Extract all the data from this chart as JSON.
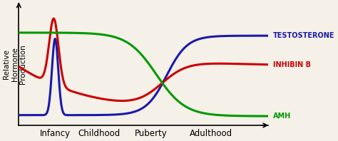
{
  "background_color": "#f5f0e8",
  "title": "",
  "ylabel": "Relative\nHormone\nProduction",
  "ylabel_fontsize": 7.5,
  "x_ticks": [
    0.18,
    0.35,
    0.55,
    0.78
  ],
  "x_tick_labels": [
    "Infancy",
    "Childhood",
    "Puberty",
    "Adulthood"
  ],
  "x_tick_fontsize": 8.5,
  "legend_labels": [
    "TESTOSTERONE",
    "INHIBIN B",
    "AMH"
  ],
  "legend_colors": [
    "#1a1aaa",
    "#cc0000",
    "#009900"
  ],
  "legend_fontsize": 7,
  "curve_linewidth": 2.2,
  "testosterone_color": "#1a1aaa",
  "inhibin_color": "#cc0000",
  "amh_color": "#009900"
}
